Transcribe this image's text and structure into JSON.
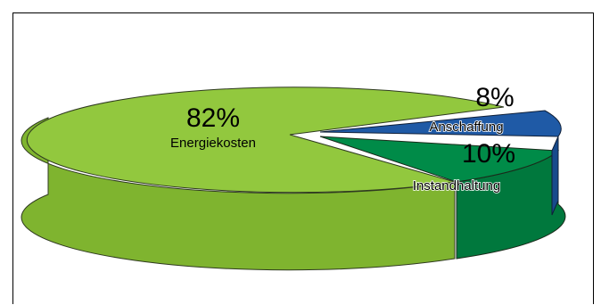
{
  "chart_data": {
    "type": "pie",
    "style": "3d",
    "slices": [
      {
        "label": "Energiekosten",
        "value": 82,
        "value_label": "82%",
        "color": "#92c83e",
        "side_color": "#7fb42f"
      },
      {
        "label": "Anschaffung",
        "value": 8,
        "value_label": "8%",
        "color": "#1f5aa6",
        "side_color": "#174a8c"
      },
      {
        "label": "Instandhaltung",
        "value": 10,
        "value_label": "10%",
        "color": "#008b48",
        "side_color": "#00783d"
      }
    ]
  }
}
